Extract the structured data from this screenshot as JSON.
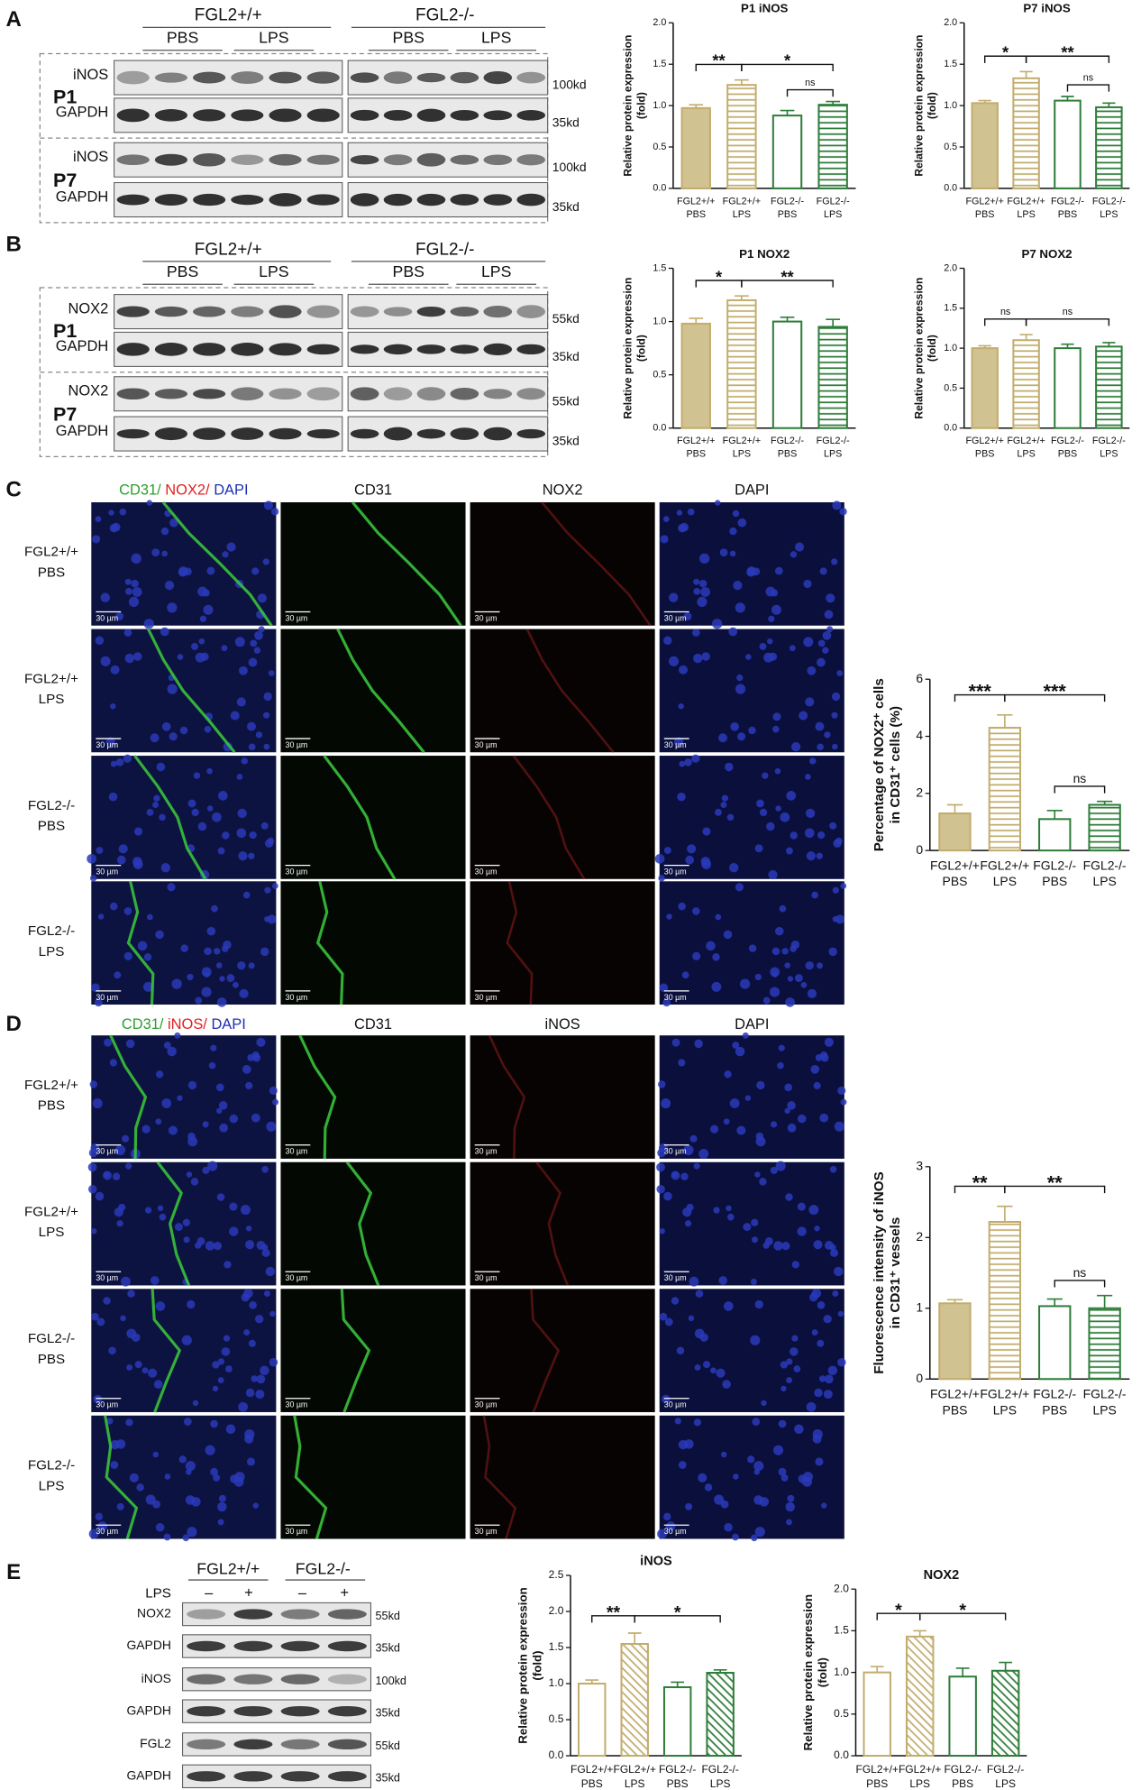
{
  "panel_labels": [
    "A",
    "B",
    "C",
    "D",
    "E"
  ],
  "blot_A": {
    "genotypes": [
      "FGL2+/+",
      "FGL2-/-"
    ],
    "treatments": [
      "PBS",
      "LPS",
      "PBS",
      "LPS"
    ],
    "groups": [
      "P1",
      "P7"
    ],
    "proteins": [
      "iNOS",
      "GAPDH",
      "iNOS",
      "GAPDH"
    ],
    "markers": [
      "100kd",
      "35kd",
      "100kd",
      "35kd"
    ]
  },
  "blot_B": {
    "genotypes": [
      "FGL2+/+",
      "FGL2-/-"
    ],
    "treatments": [
      "PBS",
      "LPS",
      "PBS",
      "LPS"
    ],
    "groups": [
      "P1",
      "P7"
    ],
    "proteins": [
      "NOX2",
      "GAPDH",
      "NOX2",
      "GAPDH"
    ],
    "markers": [
      "55kd",
      "35kd",
      "55kd",
      "35kd"
    ]
  },
  "imaging_C": {
    "merge_label": [
      "CD31/",
      " NOX2/",
      " DAPI"
    ],
    "channels": [
      "CD31",
      "NOX2",
      "DAPI"
    ],
    "rows": [
      [
        "FGL2+/+",
        "PBS"
      ],
      [
        "FGL2+/+",
        "LPS"
      ],
      [
        "FGL2-/-",
        "PBS"
      ],
      [
        "FGL2-/-",
        "LPS"
      ]
    ],
    "scale_bar": "30 µm"
  },
  "imaging_D": {
    "merge_label": [
      "CD31/",
      " iNOS/",
      " DAPI"
    ],
    "channels": [
      "CD31",
      "iNOS",
      "DAPI"
    ],
    "rows": [
      [
        "FGL2+/+",
        "PBS"
      ],
      [
        "FGL2+/+",
        "LPS"
      ],
      [
        "FGL2-/-",
        "PBS"
      ],
      [
        "FGL2-/-",
        "LPS"
      ]
    ],
    "scale_bar": "30 µm"
  },
  "blot_E": {
    "genotypes": [
      "FGL2+/+",
      "FGL2-/-"
    ],
    "treatment_label": "LPS",
    "treatment_signs": [
      "–",
      "+",
      "–",
      "+"
    ],
    "proteins": [
      "NOX2",
      "GAPDH",
      "iNOS",
      "GAPDH",
      "FGL2",
      "GAPDH"
    ],
    "markers": [
      "55kd",
      "35kd",
      "100kd",
      "35kd",
      "55kd",
      "35kd"
    ]
  },
  "chart_data": [
    {
      "type": "bar",
      "title": "P1 iNOS",
      "ylabel": [
        "Relative protein expression",
        "(fold)"
      ],
      "categories": [
        "PBS",
        "LPS",
        "PBS",
        "LPS"
      ],
      "groups": [
        "FGL2+/+",
        "FGL2+/+",
        "FGL2-/-",
        "FGL2-/-"
      ],
      "values": [
        0.97,
        1.25,
        0.88,
        1.01
      ],
      "errors": [
        0.04,
        0.06,
        0.06,
        0.04
      ],
      "colors": [
        "#c2ad6e",
        "#c2ad6e",
        "#2f7d3a",
        "#2f7d3a"
      ],
      "fills": [
        "solid",
        "h-stripes",
        "open",
        "h-stripes"
      ],
      "ylim": [
        0,
        2
      ],
      "yticks": [
        {
          "value": 0,
          "label": "0.0"
        },
        0.5,
        {
          "value": 1,
          "label": "1.0"
        },
        1.5,
        {
          "value": 2,
          "label": "2.0"
        }
      ],
      "comparisons": [
        {
          "bars": [
            0,
            1
          ],
          "label": "**"
        },
        {
          "bars": [
            1,
            3
          ],
          "label": "*"
        },
        {
          "bars": [
            2,
            3
          ],
          "label": "ns"
        }
      ]
    },
    {
      "type": "bar",
      "title": "P7 iNOS",
      "ylabel": [
        "Relative protein expression",
        "(fold)"
      ],
      "categories": [
        "PBS",
        "LPS",
        "PBS",
        "LPS"
      ],
      "groups": [
        "FGL2+/+",
        "FGL2+/+",
        "FGL2-/-",
        "FGL2-/-"
      ],
      "values": [
        1.03,
        1.33,
        1.06,
        0.98
      ],
      "errors": [
        0.03,
        0.08,
        0.05,
        0.05
      ],
      "colors": [
        "#c2ad6e",
        "#c2ad6e",
        "#2f7d3a",
        "#2f7d3a"
      ],
      "fills": [
        "solid",
        "h-stripes",
        "open",
        "h-stripes"
      ],
      "ylim": [
        0,
        2
      ],
      "yticks": [
        {
          "value": 0,
          "label": "0.0"
        },
        0.5,
        {
          "value": 1,
          "label": "1.0"
        },
        1.5,
        {
          "value": 2,
          "label": "2.0"
        }
      ],
      "comparisons": [
        {
          "bars": [
            0,
            1
          ],
          "label": "*"
        },
        {
          "bars": [
            1,
            3
          ],
          "label": "**"
        },
        {
          "bars": [
            2,
            3
          ],
          "label": "ns"
        }
      ]
    },
    {
      "type": "bar",
      "title": "P1 NOX2",
      "ylabel": [
        "Relative protein expression",
        "(fold)"
      ],
      "categories": [
        "PBS",
        "LPS",
        "PBS",
        "LPS"
      ],
      "groups": [
        "FGL2+/+",
        "FGL2+/+",
        "FGL2-/-",
        "FGL2-/-"
      ],
      "values": [
        0.98,
        1.2,
        1.0,
        0.95
      ],
      "errors": [
        0.05,
        0.04,
        0.04,
        0.07
      ],
      "colors": [
        "#c2ad6e",
        "#c2ad6e",
        "#2f7d3a",
        "#2f7d3a"
      ],
      "fills": [
        "solid",
        "h-stripes",
        "open",
        "h-stripes"
      ],
      "ylim": [
        0,
        1.5
      ],
      "yticks": [
        {
          "value": 0,
          "label": "0.0"
        },
        0.5,
        {
          "value": 1,
          "label": "1.0"
        },
        1.5
      ],
      "comparisons": [
        {
          "bars": [
            0,
            1
          ],
          "label": "*"
        },
        {
          "bars": [
            1,
            3
          ],
          "label": "**"
        }
      ]
    },
    {
      "type": "bar",
      "title": "P7 NOX2",
      "ylabel": [
        "Relative protein expression",
        "(fold)"
      ],
      "categories": [
        "PBS",
        "LPS",
        "PBS",
        "LPS"
      ],
      "groups": [
        "FGL2+/+",
        "FGL2+/+",
        "FGL2-/-",
        "FGL2-/-"
      ],
      "values": [
        1.0,
        1.1,
        1.0,
        1.02
      ],
      "errors": [
        0.03,
        0.07,
        0.05,
        0.05
      ],
      "colors": [
        "#c2ad6e",
        "#c2ad6e",
        "#2f7d3a",
        "#2f7d3a"
      ],
      "fills": [
        "solid",
        "h-stripes",
        "open",
        "h-stripes"
      ],
      "ylim": [
        0,
        2
      ],
      "yticks": [
        {
          "value": 0,
          "label": "0.0"
        },
        0.5,
        {
          "value": 1,
          "label": "1.0"
        },
        1.5,
        {
          "value": 2,
          "label": "2.0"
        }
      ],
      "comparisons": [
        {
          "bars": [
            0,
            1
          ],
          "label": "ns"
        },
        {
          "bars": [
            1,
            3
          ],
          "label": "ns"
        }
      ]
    },
    {
      "type": "bar",
      "ylabel": [
        "Percentage of NOX2⁺ cells",
        "in CD31⁺ cells (%)"
      ],
      "categories": [
        "PBS",
        "LPS",
        "PBS",
        "LPS"
      ],
      "groups": [
        "FGL2+/+",
        "FGL2+/+",
        "FGL2-/-",
        "FGL2-/-"
      ],
      "values": [
        1.3,
        4.3,
        1.1,
        1.6
      ],
      "errors": [
        0.3,
        0.45,
        0.3,
        0.12
      ],
      "colors": [
        "#c2ad6e",
        "#c2ad6e",
        "#2f7d3a",
        "#2f7d3a"
      ],
      "fills": [
        "solid",
        "h-stripes",
        "open",
        "h-stripes"
      ],
      "ylim": [
        0,
        6
      ],
      "yticks": [
        0,
        2,
        4,
        6
      ],
      "comparisons": [
        {
          "bars": [
            0,
            1
          ],
          "label": "***"
        },
        {
          "bars": [
            1,
            3
          ],
          "label": "***"
        },
        {
          "bars": [
            2,
            3
          ],
          "label": "ns"
        }
      ]
    },
    {
      "type": "bar",
      "ylabel": [
        "Fluorescence intensity of iNOS",
        "in CD31⁺ vessels"
      ],
      "categories": [
        "PBS",
        "LPS",
        "PBS",
        "LPS"
      ],
      "groups": [
        "FGL2+/+",
        "FGL2+/+",
        "FGL2-/-",
        "FGL2-/-"
      ],
      "values": [
        1.07,
        2.22,
        1.03,
        1.0
      ],
      "errors": [
        0.05,
        0.22,
        0.1,
        0.18
      ],
      "colors": [
        "#c2ad6e",
        "#c2ad6e",
        "#2f7d3a",
        "#2f7d3a"
      ],
      "fills": [
        "solid",
        "h-stripes",
        "open",
        "h-stripes"
      ],
      "ylim": [
        0,
        3
      ],
      "yticks": [
        0,
        1,
        2,
        3
      ],
      "comparisons": [
        {
          "bars": [
            0,
            1
          ],
          "label": "**"
        },
        {
          "bars": [
            1,
            3
          ],
          "label": "**"
        },
        {
          "bars": [
            2,
            3
          ],
          "label": "ns"
        }
      ]
    },
    {
      "type": "bar",
      "title": "iNOS",
      "ylabel": [
        "Relative protein expression",
        "(fold)"
      ],
      "categories": [
        "PBS",
        "LPS",
        "PBS",
        "LPS"
      ],
      "groups": [
        "FGL2+/+",
        "FGL2+/+",
        "FGL2-/-",
        "FGL2-/-"
      ],
      "values": [
        1.0,
        1.55,
        0.95,
        1.15
      ],
      "errors": [
        0.05,
        0.15,
        0.07,
        0.04
      ],
      "colors": [
        "#c2ad6e",
        "#c2ad6e",
        "#2f7d3a",
        "#2f7d3a"
      ],
      "fills": [
        "open",
        "d-stripes",
        "open",
        "d-stripes"
      ],
      "ylim": [
        0,
        2.5
      ],
      "yticks": [
        {
          "value": 0,
          "label": "0.0"
        },
        0.5,
        {
          "value": 1,
          "label": "1.0"
        },
        1.5,
        {
          "value": 2,
          "label": "2.0"
        },
        2.5
      ],
      "comparisons": [
        {
          "bars": [
            0,
            1
          ],
          "label": "**"
        },
        {
          "bars": [
            1,
            3
          ],
          "label": "*"
        }
      ]
    },
    {
      "type": "bar",
      "title": "NOX2",
      "ylabel": [
        "Relative protein expression",
        "(fold)"
      ],
      "categories": [
        "PBS",
        "LPS",
        "PBS",
        "LPS"
      ],
      "groups": [
        "FGL2+/+",
        "FGL2+/+",
        "FGL2-/-",
        "FGL2-/-"
      ],
      "values": [
        1.0,
        1.43,
        0.95,
        1.02
      ],
      "errors": [
        0.07,
        0.07,
        0.1,
        0.1
      ],
      "colors": [
        "#c2ad6e",
        "#c2ad6e",
        "#2f7d3a",
        "#2f7d3a"
      ],
      "fills": [
        "open",
        "d-stripes",
        "open",
        "d-stripes"
      ],
      "ylim": [
        0,
        2
      ],
      "yticks": [
        {
          "value": 0,
          "label": "0.0"
        },
        0.5,
        {
          "value": 1,
          "label": "1.0"
        },
        1.5,
        {
          "value": 2,
          "label": "2.0"
        }
      ],
      "comparisons": [
        {
          "bars": [
            0,
            1
          ],
          "label": "*"
        },
        {
          "bars": [
            1,
            3
          ],
          "label": "*"
        }
      ]
    }
  ]
}
